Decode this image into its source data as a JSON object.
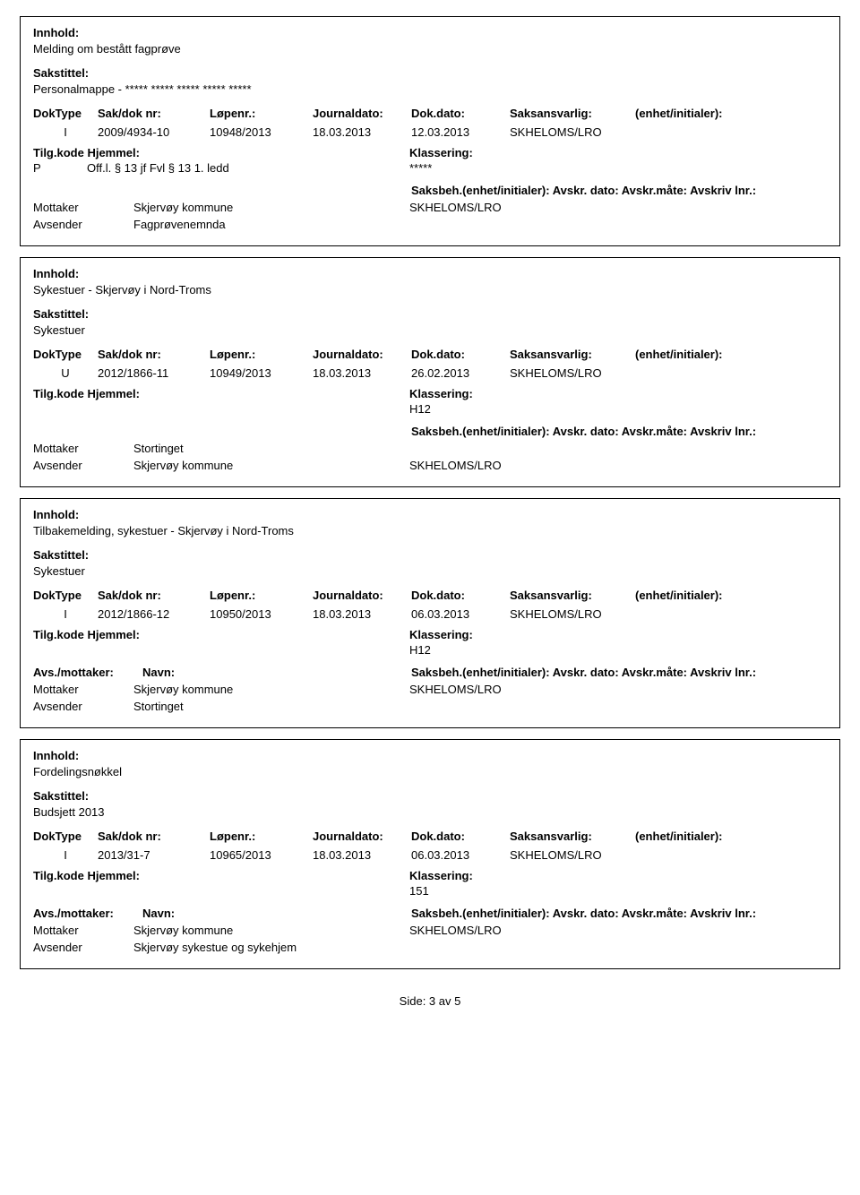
{
  "labels": {
    "innhold": "Innhold:",
    "sakstittel": "Sakstittel:",
    "doktype": "DokType",
    "sakdoknr": "Sak/dok nr:",
    "lopenr": "Løpenr.:",
    "journaldato": "Journaldato:",
    "dokdato": "Dok.dato:",
    "saksansvarlig": "Saksansvarlig:",
    "enhet": "(enhet/initialer):",
    "tilgkode": "Tilg.kode",
    "hjemmel": "Hjemmel:",
    "klassering": "Klassering:",
    "avsmottaker": "Avs./mottaker:",
    "navn": "Navn:",
    "saksbeh": "Saksbeh.(enhet/initialer): Avskr. dato:  Avskr.måte:  Avskriv lnr.:",
    "mottaker": "Mottaker",
    "avsender": "Avsender"
  },
  "records": [
    {
      "innhold": "Melding om bestått fagprøve",
      "sakstittel": "Personalmappe - ***** ***** ***** ***** *****",
      "doktype": "I",
      "sakdoknr": "2009/4934-10",
      "lopenr": "10948/2013",
      "journaldato": "18.03.2013",
      "dokdato": "12.03.2013",
      "saksansvarlig": "SKHELOMS/LRO",
      "tilgkode": "P",
      "hjemmel": "Off.l. § 13 jf Fvl § 13 1. ledd",
      "klassval": "*****",
      "mottaker": "Skjervøy kommune",
      "avsender": "Fagprøvenemnda",
      "saksbeh": "SKHELOMS/LRO",
      "showAMHeader": false
    },
    {
      "innhold": "Sykestuer - Skjervøy i Nord-Troms",
      "sakstittel": "Sykestuer",
      "doktype": "U",
      "sakdoknr": "2012/1866-11",
      "lopenr": "10949/2013",
      "journaldato": "18.03.2013",
      "dokdato": "26.02.2013",
      "saksansvarlig": "SKHELOMS/LRO",
      "tilgkode": "",
      "hjemmel": "",
      "klassval": "H12",
      "mottaker": "Stortinget",
      "avsender": "Skjervøy kommune",
      "saksbeh": "SKHELOMS/LRO",
      "showAMHeader": false,
      "saksbehBelow": true
    },
    {
      "innhold": "Tilbakemelding, sykestuer - Skjervøy i Nord-Troms",
      "sakstittel": "Sykestuer",
      "doktype": "I",
      "sakdoknr": "2012/1866-12",
      "lopenr": "10950/2013",
      "journaldato": "18.03.2013",
      "dokdato": "06.03.2013",
      "saksansvarlig": "SKHELOMS/LRO",
      "tilgkode": "",
      "hjemmel": "",
      "klassval": "H12",
      "mottaker": "Skjervøy kommune",
      "avsender": "Stortinget",
      "saksbeh": "SKHELOMS/LRO",
      "showAMHeader": true
    },
    {
      "innhold": "Fordelingsnøkkel",
      "sakstittel": "Budsjett 2013",
      "doktype": "I",
      "sakdoknr": "2013/31-7",
      "lopenr": "10965/2013",
      "journaldato": "18.03.2013",
      "dokdato": "06.03.2013",
      "saksansvarlig": "SKHELOMS/LRO",
      "tilgkode": "",
      "hjemmel": "",
      "klassval": "151",
      "mottaker": "Skjervøy kommune",
      "avsender": "Skjervøy sykestue og sykehjem",
      "saksbeh": "SKHELOMS/LRO",
      "showAMHeader": true
    }
  ],
  "footer": "Side: 3 av 5"
}
